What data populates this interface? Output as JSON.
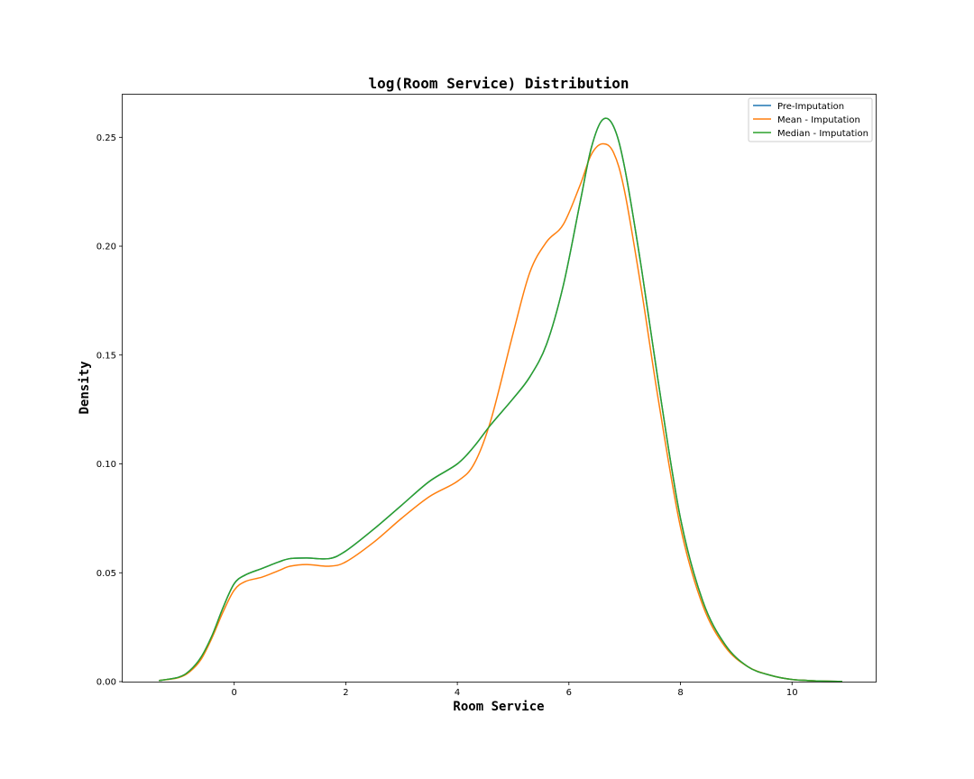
{
  "chart_data": {
    "type": "line",
    "title": "log(Room Service) Distribution",
    "xlabel": "Room Service",
    "ylabel": "Density",
    "xlim": [
      -2.0,
      11.5
    ],
    "ylim": [
      0.0,
      0.27
    ],
    "x_ticks": [
      "0",
      "2",
      "4",
      "6",
      "8",
      "10"
    ],
    "x_tick_values": [
      0,
      2,
      4,
      6,
      8,
      10
    ],
    "y_ticks": [
      "0.00",
      "0.05",
      "0.10",
      "0.15",
      "0.20",
      "0.25"
    ],
    "y_tick_values": [
      0.0,
      0.05,
      0.1,
      0.15,
      0.2,
      0.25
    ],
    "grid": false,
    "legend_position": "upper right",
    "series": [
      {
        "name": "Pre-Imputation",
        "color": "#1f77b4",
        "x": [
          -1.35,
          -1.0,
          -0.8,
          -0.6,
          -0.4,
          -0.2,
          0.0,
          0.2,
          0.5,
          0.8,
          1.0,
          1.3,
          1.7,
          2.0,
          2.5,
          3.0,
          3.5,
          4.0,
          4.3,
          4.6,
          5.0,
          5.3,
          5.6,
          5.9,
          6.2,
          6.4,
          6.6,
          6.8,
          7.0,
          7.3,
          7.6,
          8.0,
          8.4,
          8.8,
          9.2,
          9.6,
          10.0,
          10.5,
          10.9
        ],
        "y": [
          0.0005,
          0.002,
          0.005,
          0.011,
          0.021,
          0.034,
          0.045,
          0.049,
          0.052,
          0.055,
          0.0565,
          0.0568,
          0.0565,
          0.06,
          0.07,
          0.081,
          0.092,
          0.1,
          0.108,
          0.118,
          0.13,
          0.14,
          0.155,
          0.182,
          0.22,
          0.245,
          0.258,
          0.255,
          0.236,
          0.19,
          0.138,
          0.075,
          0.037,
          0.017,
          0.007,
          0.003,
          0.001,
          0.0003,
          0.0001
        ]
      },
      {
        "name": "Mean - Imputation",
        "color": "#ff7f0e",
        "x": [
          -1.35,
          -1.0,
          -0.8,
          -0.6,
          -0.4,
          -0.2,
          0.0,
          0.2,
          0.5,
          0.8,
          1.0,
          1.3,
          1.7,
          2.0,
          2.5,
          3.0,
          3.5,
          4.0,
          4.3,
          4.6,
          5.0,
          5.3,
          5.6,
          5.9,
          6.2,
          6.4,
          6.6,
          6.8,
          7.0,
          7.3,
          7.6,
          8.0,
          8.4,
          8.8,
          9.2,
          9.6,
          10.0,
          10.5,
          10.9
        ],
        "y": [
          0.0005,
          0.0018,
          0.0045,
          0.01,
          0.02,
          0.032,
          0.042,
          0.046,
          0.048,
          0.051,
          0.053,
          0.0538,
          0.053,
          0.055,
          0.064,
          0.075,
          0.085,
          0.092,
          0.1,
          0.12,
          0.16,
          0.188,
          0.202,
          0.21,
          0.228,
          0.242,
          0.247,
          0.243,
          0.225,
          0.18,
          0.13,
          0.071,
          0.035,
          0.016,
          0.007,
          0.003,
          0.001,
          0.0003,
          0.0001
        ]
      },
      {
        "name": "Median - Imputation",
        "color": "#2ca02c",
        "x": [
          -1.35,
          -1.0,
          -0.8,
          -0.6,
          -0.4,
          -0.2,
          0.0,
          0.2,
          0.5,
          0.8,
          1.0,
          1.3,
          1.7,
          2.0,
          2.5,
          3.0,
          3.5,
          4.0,
          4.3,
          4.6,
          5.0,
          5.3,
          5.6,
          5.9,
          6.2,
          6.4,
          6.6,
          6.8,
          7.0,
          7.3,
          7.6,
          8.0,
          8.4,
          8.8,
          9.2,
          9.6,
          10.0,
          10.5,
          10.9
        ],
        "y": [
          0.0005,
          0.002,
          0.005,
          0.011,
          0.021,
          0.034,
          0.045,
          0.049,
          0.052,
          0.055,
          0.0565,
          0.0568,
          0.0565,
          0.06,
          0.07,
          0.081,
          0.092,
          0.1,
          0.108,
          0.118,
          0.13,
          0.14,
          0.155,
          0.182,
          0.22,
          0.245,
          0.258,
          0.255,
          0.236,
          0.19,
          0.138,
          0.075,
          0.037,
          0.017,
          0.007,
          0.003,
          0.001,
          0.0003,
          0.0001
        ]
      }
    ]
  }
}
